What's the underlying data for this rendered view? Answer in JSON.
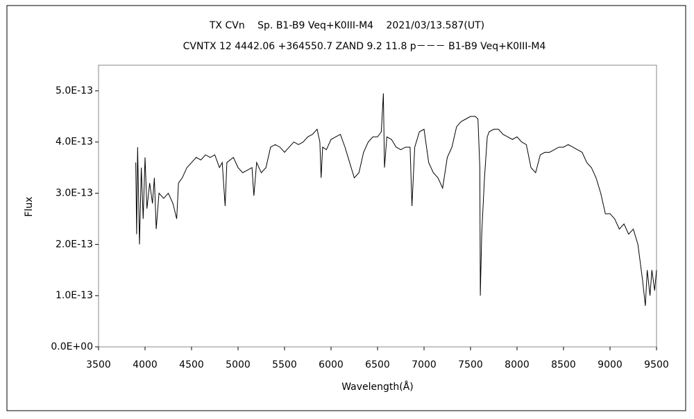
{
  "chart_data": {
    "type": "line",
    "title": "TX CVn　 Sp. B1-B9 Veq+K0III-M4　 2021/03/13.587(UT)",
    "subtitle": "CVNTX 12 4442.06 +364550.7 ZAND 9.2 11.8 p－－－ B1-B9 Veq+K0III-M4",
    "xlabel": "Wavelength(Å)",
    "ylabel": "Flux",
    "x": [
      3900,
      3910,
      3920,
      3940,
      3960,
      3980,
      4000,
      4020,
      4050,
      4080,
      4100,
      4120,
      4150,
      4200,
      4250,
      4300,
      4340,
      4360,
      4400,
      4450,
      4500,
      4550,
      4600,
      4650,
      4700,
      4750,
      4800,
      4830,
      4861,
      4880,
      4950,
      5000,
      5050,
      5100,
      5150,
      5170,
      5200,
      5250,
      5300,
      5350,
      5400,
      5450,
      5500,
      5550,
      5600,
      5650,
      5700,
      5750,
      5800,
      5850,
      5880,
      5893,
      5910,
      5950,
      6000,
      6050,
      6100,
      6150,
      6200,
      6250,
      6300,
      6350,
      6400,
      6450,
      6500,
      6540,
      6563,
      6575,
      6600,
      6650,
      6700,
      6750,
      6800,
      6850,
      6870,
      6900,
      6950,
      7000,
      7050,
      7100,
      7150,
      7200,
      7250,
      7300,
      7350,
      7400,
      7450,
      7500,
      7550,
      7580,
      7600,
      7605,
      7620,
      7650,
      7680,
      7700,
      7750,
      7800,
      7850,
      7900,
      7950,
      8000,
      8050,
      8100,
      8150,
      8200,
      8250,
      8300,
      8350,
      8400,
      8450,
      8500,
      8550,
      8600,
      8650,
      8700,
      8750,
      8800,
      8850,
      8900,
      8950,
      9000,
      9050,
      9100,
      9150,
      9200,
      9250,
      9300,
      9350,
      9380,
      9400,
      9430,
      9450,
      9480,
      9500
    ],
    "series": [
      {
        "name": "TX CVn",
        "color": "#000000",
        "values": [
          3.6e-13,
          2.2e-13,
          3.9e-13,
          2e-13,
          3.5e-13,
          2.5e-13,
          3.7e-13,
          2.7e-13,
          3.2e-13,
          2.8e-13,
          3.3e-13,
          2.3e-13,
          3e-13,
          2.9e-13,
          3e-13,
          2.8e-13,
          2.5e-13,
          3.2e-13,
          3.3e-13,
          3.5e-13,
          3.6e-13,
          3.7e-13,
          3.65e-13,
          3.75e-13,
          3.7e-13,
          3.75e-13,
          3.5e-13,
          3.6e-13,
          2.75e-13,
          3.6e-13,
          3.7e-13,
          3.5e-13,
          3.4e-13,
          3.45e-13,
          3.5e-13,
          2.95e-13,
          3.6e-13,
          3.4e-13,
          3.5e-13,
          3.9e-13,
          3.95e-13,
          3.9e-13,
          3.8e-13,
          3.9e-13,
          4e-13,
          3.95e-13,
          4e-13,
          4.1e-13,
          4.15e-13,
          4.25e-13,
          4e-13,
          3.3e-13,
          3.9e-13,
          3.85e-13,
          4.05e-13,
          4.1e-13,
          4.15e-13,
          3.9e-13,
          3.6e-13,
          3.3e-13,
          3.4e-13,
          3.8e-13,
          4e-13,
          4.1e-13,
          4.1e-13,
          4.2e-13,
          4.95e-13,
          3.5e-13,
          4.1e-13,
          4.05e-13,
          3.9e-13,
          3.85e-13,
          3.9e-13,
          3.9e-13,
          2.75e-13,
          3.9e-13,
          4.2e-13,
          4.25e-13,
          3.6e-13,
          3.4e-13,
          3.3e-13,
          3.1e-13,
          3.7e-13,
          3.9e-13,
          4.3e-13,
          4.4e-13,
          4.45e-13,
          4.5e-13,
          4.5e-13,
          4.45e-13,
          3.5e-13,
          1e-13,
          2.2e-13,
          3.3e-13,
          4.1e-13,
          4.2e-13,
          4.25e-13,
          4.25e-13,
          4.15e-13,
          4.1e-13,
          4.05e-13,
          4.1e-13,
          4e-13,
          3.95e-13,
          3.5e-13,
          3.4e-13,
          3.75e-13,
          3.8e-13,
          3.8e-13,
          3.85e-13,
          3.9e-13,
          3.9e-13,
          3.95e-13,
          3.9e-13,
          3.85e-13,
          3.8e-13,
          3.6e-13,
          3.5e-13,
          3.3e-13,
          3e-13,
          2.6e-13,
          2.6e-13,
          2.5e-13,
          2.3e-13,
          2.4e-13,
          2.2e-13,
          2.3e-13,
          2e-13,
          1.3e-13,
          8e-14,
          1.5e-13,
          1e-13,
          1.5e-13,
          1.1e-13,
          1.5e-13
        ]
      }
    ],
    "xlim": [
      3500,
      9500
    ],
    "xticks": [
      3500,
      4000,
      4500,
      5000,
      5500,
      6000,
      6500,
      7000,
      7500,
      8000,
      8500,
      9000,
      9500
    ],
    "ylim": [
      0,
      5.5e-13
    ],
    "yticks": [
      {
        "value": 0,
        "label": "0.0E+00"
      },
      {
        "value": 1e-13,
        "label": "1.0E-13"
      },
      {
        "value": 2e-13,
        "label": "2.0E-13"
      },
      {
        "value": 3e-13,
        "label": "3.0E-13"
      },
      {
        "value": 4e-13,
        "label": "4.0E-13"
      },
      {
        "value": 5e-13,
        "label": "5.0E-13"
      }
    ]
  }
}
